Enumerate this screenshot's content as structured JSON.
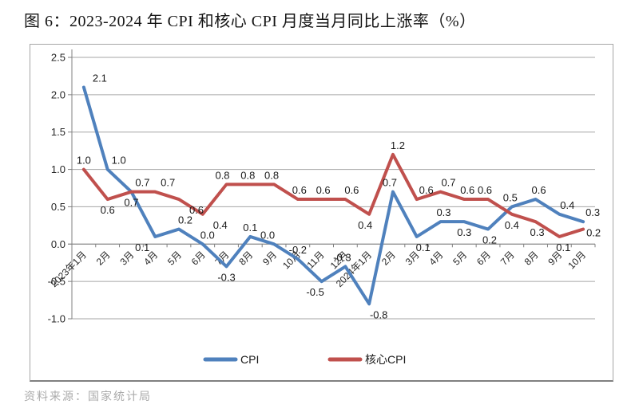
{
  "title": "图 6：2023-2024 年 CPI 和核心 CPI 月度当月同比上涨率（%）",
  "source": "资料来源：国家统计局",
  "colors": {
    "cpi_line": "#4F81BD",
    "core_cpi_line": "#C0504D",
    "grid": "#A6A6A6",
    "axis": "#808080",
    "data_label": "#1A1A1A",
    "axis_text": "#262626",
    "legend_text": "#1A1A1A"
  },
  "chart_data": {
    "type": "line",
    "title": "",
    "xlabel": "",
    "ylabel": "",
    "ylim": [
      -1.0,
      2.5
    ],
    "ytick_step": 0.5,
    "ytick_labels": [
      "2.5",
      "2.0",
      "1.5",
      "1.0",
      "0.5",
      "0.0",
      "-0.5",
      "-1.0"
    ],
    "grid": true,
    "legend_position": "bottom",
    "categories": [
      "2023年1月",
      "2月",
      "3月",
      "4月",
      "5月",
      "6月",
      "7月",
      "8月",
      "9月",
      "10月",
      "11月",
      "12月",
      "2024年1月",
      "2月",
      "3月",
      "4月",
      "5月",
      "6月",
      "7月",
      "8月",
      "9月",
      "10月"
    ],
    "series": [
      {
        "name": "CPI",
        "color": "#4F81BD",
        "values": [
          2.1,
          1.0,
          0.7,
          0.1,
          0.2,
          0.0,
          -0.3,
          0.1,
          0.0,
          -0.2,
          -0.5,
          -0.3,
          -0.8,
          0.7,
          0.1,
          0.3,
          0.3,
          0.2,
          0.5,
          0.6,
          0.4,
          0.3
        ],
        "label_pos": [
          "a20",
          "a14",
          "b",
          "b-16",
          "a8",
          "a6",
          "b",
          "a",
          "a-8",
          "a",
          "b-8",
          "a-4",
          "b12",
          "a-4",
          "b8",
          "a4",
          "b",
          "b2",
          "a-2",
          "a4",
          "a10",
          "a12"
        ]
      },
      {
        "name": "核心CPI",
        "color": "#C0504D",
        "values": [
          1.0,
          0.6,
          0.7,
          0.7,
          0.6,
          0.4,
          0.8,
          0.8,
          0.8,
          0.6,
          0.6,
          0.6,
          0.4,
          1.2,
          0.6,
          0.7,
          0.6,
          0.6,
          0.4,
          0.3,
          0.1,
          0.2
        ],
        "label_pos": [
          "a",
          "b",
          "a14",
          "a16",
          "b22",
          "b22",
          "a-5",
          "a-3",
          "a-3",
          "a2",
          "a2",
          "a8",
          "b-5",
          "a6",
          "a12",
          "a10",
          "a4",
          "a-4",
          "b",
          "b2",
          "b5",
          "r"
        ]
      }
    ]
  }
}
